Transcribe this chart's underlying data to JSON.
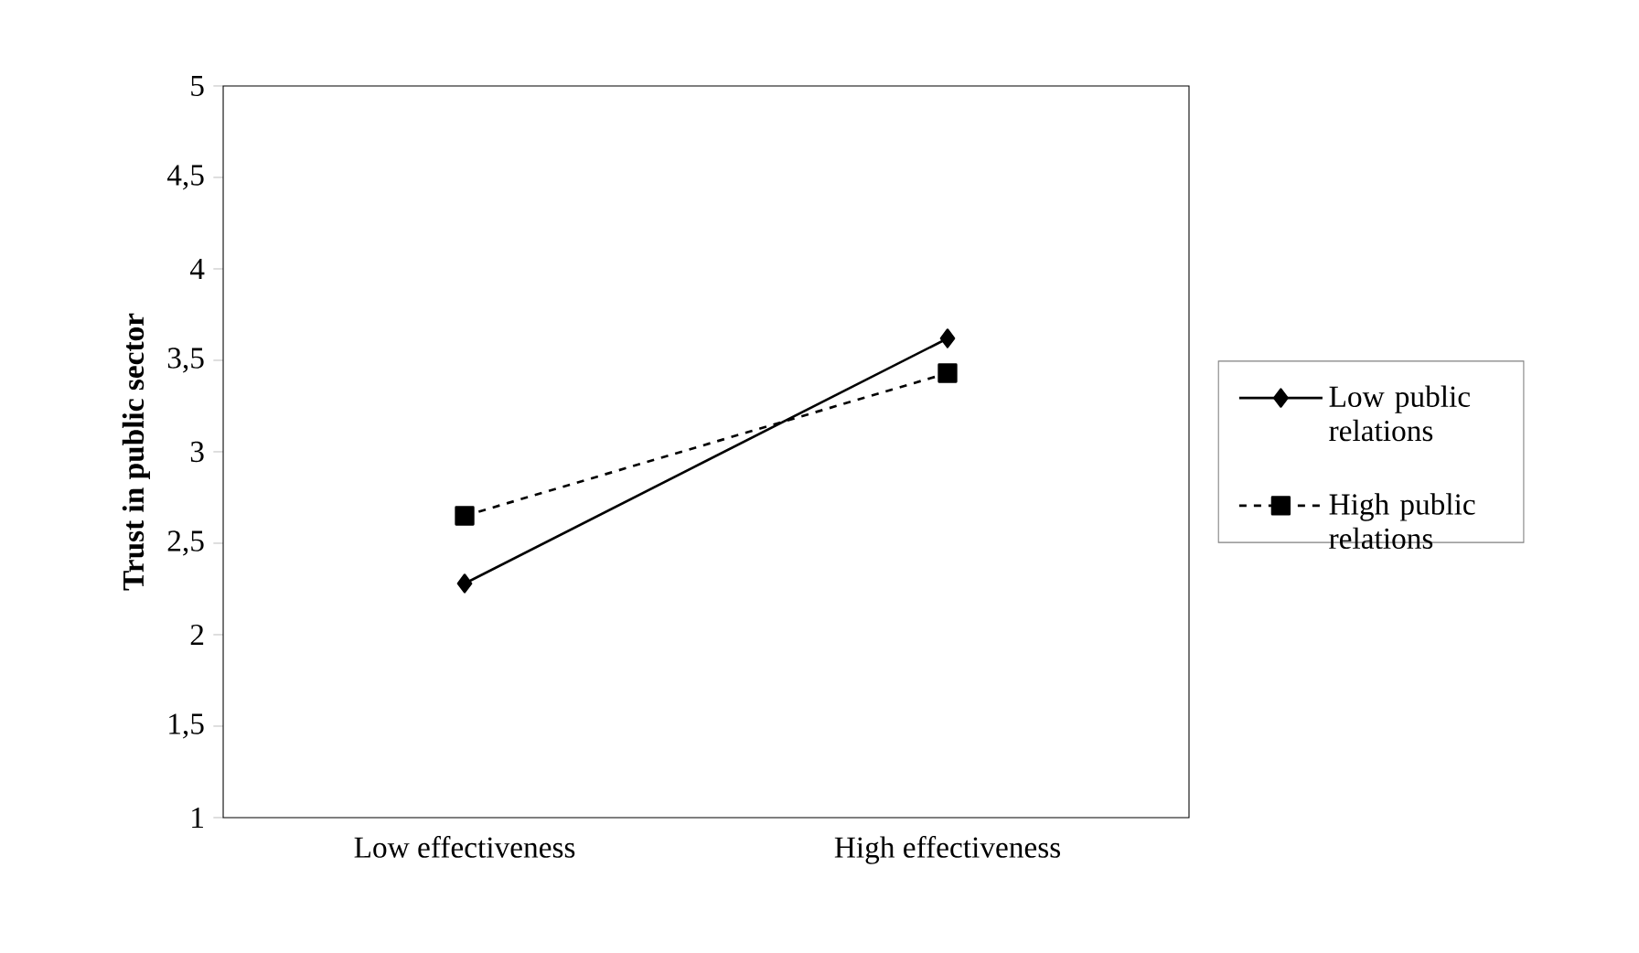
{
  "chart_data": {
    "type": "line",
    "ylabel": "Trust in public sector",
    "categories": [
      "Low effectiveness",
      "High effectiveness"
    ],
    "series": [
      {
        "name": "Low public relations",
        "color": "#000000",
        "marker": "diamond",
        "line_style": "solid",
        "values": [
          2.28,
          3.62
        ]
      },
      {
        "name": "High public relations",
        "color": "#000000",
        "marker": "square",
        "line_style": "dashed",
        "values": [
          2.65,
          3.43
        ]
      }
    ],
    "ylim": [
      1,
      5
    ],
    "yticks": [
      1,
      {
        "value": 1.5,
        "label": "1,5"
      },
      2,
      {
        "value": 2.5,
        "label": "2,5"
      },
      3,
      {
        "value": 3.5,
        "label": "3,5"
      },
      4,
      {
        "value": 4.5,
        "label": "4,5"
      },
      5
    ],
    "grid": false,
    "legend": "right"
  }
}
